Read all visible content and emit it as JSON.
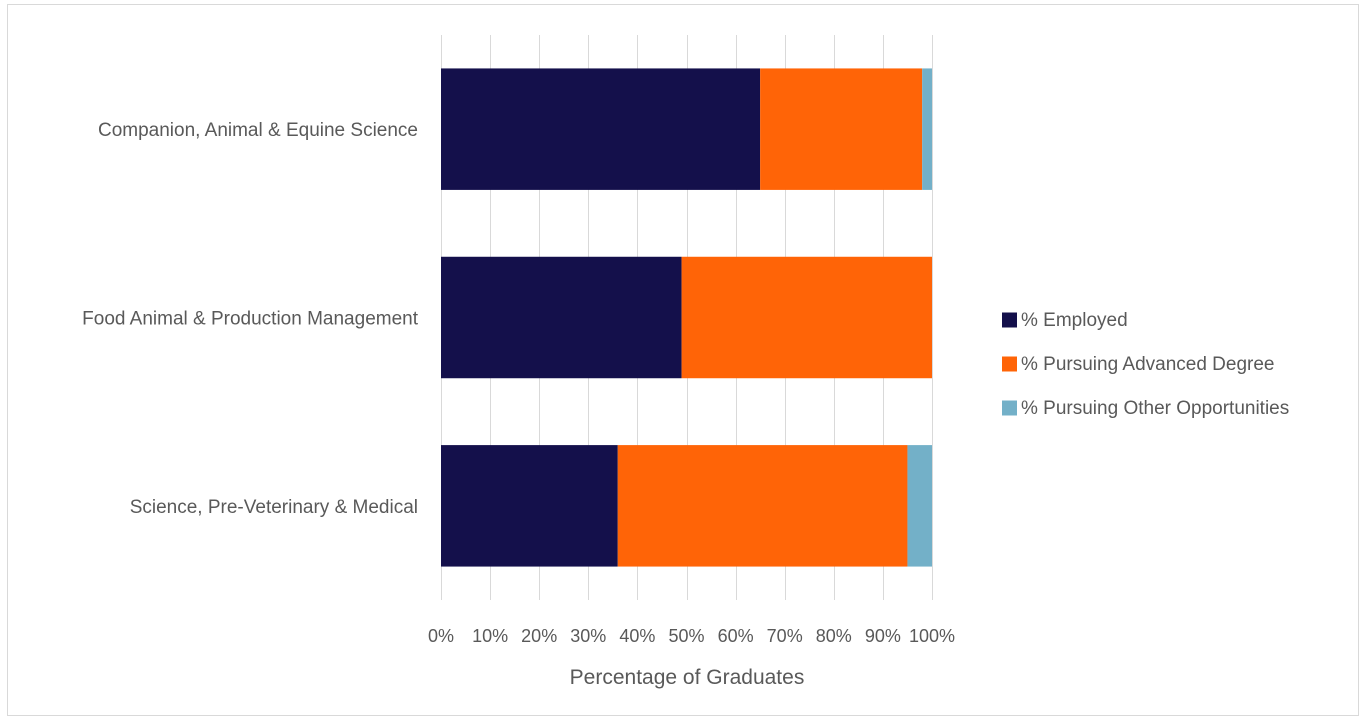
{
  "chart_data": {
    "type": "bar",
    "orientation": "horizontal",
    "stacked": "percent",
    "title": "",
    "xlabel": "Percentage of Graduates",
    "ylabel": "",
    "xlim": [
      0,
      100
    ],
    "x_ticks": [
      "0%",
      "10%",
      "20%",
      "30%",
      "40%",
      "50%",
      "60%",
      "70%",
      "80%",
      "90%",
      "100%"
    ],
    "categories": [
      "Companion, Animal & Equine Science",
      "Food Animal & Production Management",
      "Science, Pre-Veterinary & Medical"
    ],
    "series": [
      {
        "name": "% Employed",
        "color": "#14104b",
        "values": [
          65,
          49,
          36
        ]
      },
      {
        "name": "% Pursuing Advanced Degree",
        "color": "#ff6407",
        "values": [
          33,
          51,
          59
        ]
      },
      {
        "name": "% Pursuing Other Opportunities",
        "color": "#73b0c8",
        "values": [
          2,
          0,
          5
        ]
      }
    ],
    "grid": true,
    "legend_position": "right"
  }
}
